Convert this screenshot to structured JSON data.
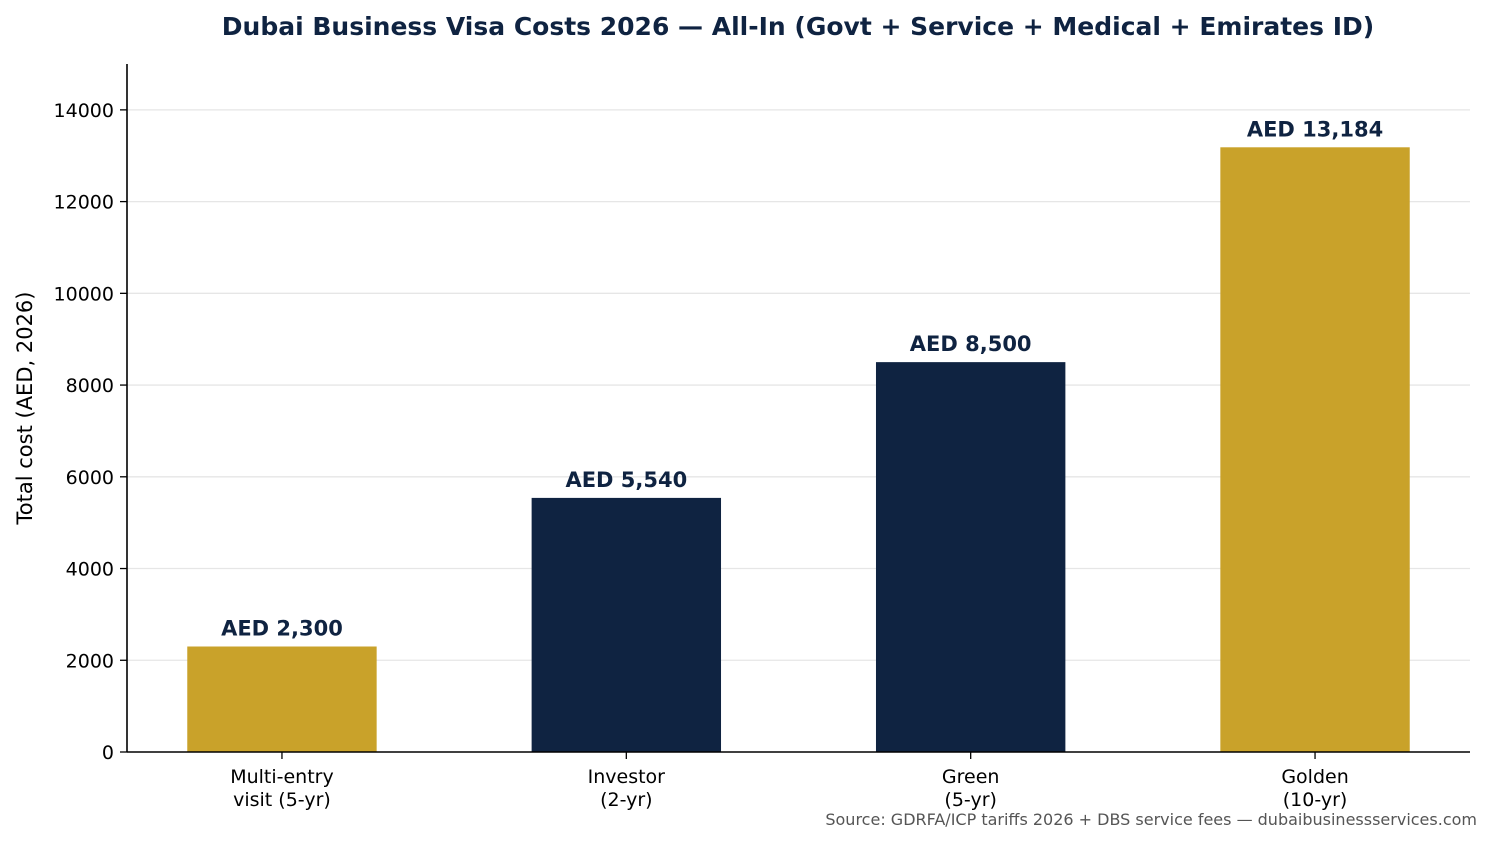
{
  "chart_data": {
    "type": "bar",
    "title": "Dubai Business Visa Costs 2026 — All-In (Govt + Service + Medical + Emirates ID)",
    "xlabel": "",
    "ylabel": "Total cost (AED, 2026)",
    "ylim": [
      0,
      15000
    ],
    "yticks": [
      0,
      2000,
      4000,
      6000,
      8000,
      10000,
      12000,
      14000
    ],
    "grid": "horizontal",
    "categories": [
      [
        "Multi-entry",
        "visit (5-yr)"
      ],
      [
        "Investor",
        "(2-yr)"
      ],
      [
        "Green",
        "(5-yr)"
      ],
      [
        "Golden",
        "(10-yr)"
      ]
    ],
    "values": [
      2300,
      5540,
      8500,
      13184
    ],
    "data_labels": [
      "AED 2,300",
      "AED 5,540",
      "AED 8,500",
      "AED 13,184"
    ],
    "bar_colors": [
      "#c9a22a",
      "#0f2341",
      "#0f2341",
      "#c9a22a"
    ],
    "source": "Source: GDRFA/ICP tariffs 2026 + DBS service fees — dubaibusinessservices.com"
  }
}
